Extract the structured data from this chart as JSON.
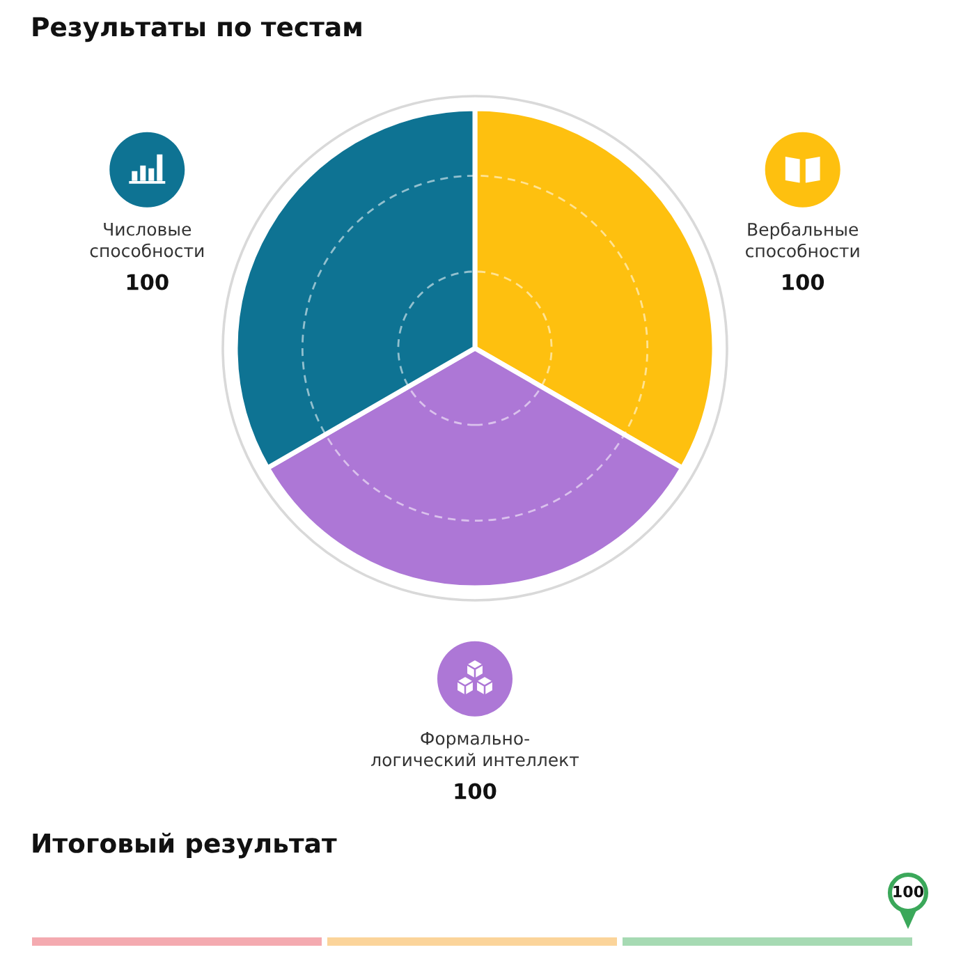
{
  "chart_data": [
    {
      "type": "pie",
      "title": "Результаты по тестам",
      "categories": [
        "Вербальные\nспособности",
        "Формально-\nлогический интеллект",
        "Числовые\nспособности"
      ],
      "values": [
        100,
        100,
        100
      ],
      "colors": [
        "#fec00f",
        "#ad77d6",
        "#0e7393"
      ],
      "data_labels": true,
      "grid": true
    },
    {
      "type": "other",
      "title": "Итоговый результат",
      "values": [
        100
      ],
      "data_labels": true,
      "color": "#3ba85a",
      "bands": [
        {
          "axis": "x",
          "color": "#f4aab0"
        },
        {
          "axis": "x",
          "color": "#fbd49a"
        },
        {
          "axis": "x",
          "color": "#a6dab3"
        }
      ]
    }
  ]
}
